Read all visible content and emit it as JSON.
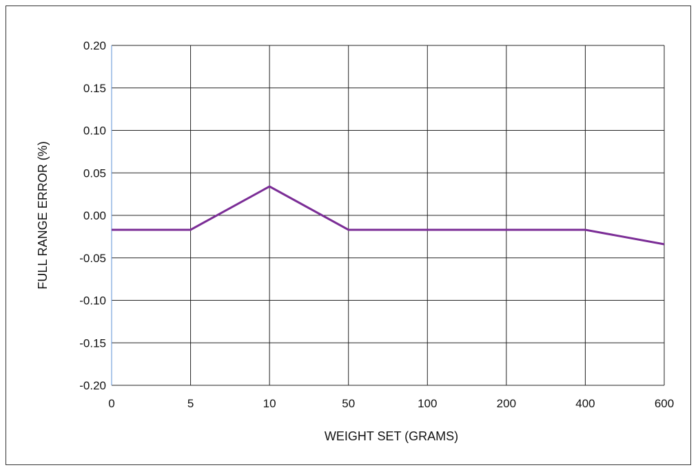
{
  "chart_data": {
    "type": "line",
    "title": "",
    "xlabel": "WEIGHT SET (GRAMS)",
    "ylabel": "FULL RANGE ERROR (%)",
    "categories": [
      "0",
      "5",
      "10",
      "50",
      "100",
      "200",
      "400",
      "600"
    ],
    "series": [
      {
        "values": [
          -0.017,
          -0.017,
          0.034,
          -0.017,
          -0.017,
          -0.017,
          -0.017,
          -0.034
        ]
      }
    ],
    "y_ticks": [
      "0.20",
      "0.15",
      "0.10",
      "0.05",
      "0.00",
      "-0.05",
      "-0.10",
      "-0.15",
      "-0.20"
    ],
    "ylim": [
      -0.2,
      0.2
    ],
    "grid": true,
    "legend": "none",
    "colors": {
      "line": "#7b2d96",
      "grid": "#222222",
      "left_axis": "#5b8fd6"
    }
  }
}
